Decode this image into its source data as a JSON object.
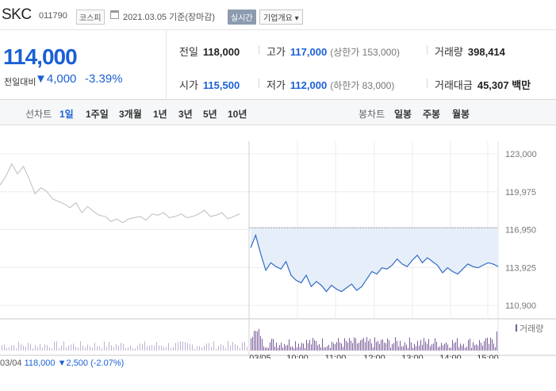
{
  "header": {
    "stock_name": "SKC",
    "stock_code": "011790",
    "market": "코스피",
    "date_text": "2021.03.05 기준(장마감)",
    "realtime_button": "실시간",
    "company_info_button": "기업개요 ▾"
  },
  "summary": {
    "price": "114,000",
    "change_label": "전일대비",
    "change_value": "▼4,000",
    "change_percent": "-3.39%",
    "fields": {
      "prev_close": {
        "label": "전일",
        "value": "118,000"
      },
      "open": {
        "label": "시가",
        "value": "115,500"
      },
      "high": {
        "label": "고가",
        "value": "117,000",
        "sub": "(상한가 153,000)"
      },
      "low": {
        "label": "저가",
        "value": "112,000",
        "sub": "(하한가 83,000)"
      },
      "volume": {
        "label": "거래량",
        "value": "398,414"
      },
      "amount": {
        "label": "거래대금",
        "value": "45,307 백만"
      }
    }
  },
  "tabs": {
    "line_label": "선차트",
    "line_items": [
      "1일",
      "1주일",
      "3개월",
      "1년",
      "3년",
      "5년",
      "10년"
    ],
    "active": "1일",
    "candle_label": "봉차트",
    "candle_items": [
      "일봉",
      "주봉",
      "월봉"
    ]
  },
  "footer": {
    "prev_date": "03/04",
    "prev_price": "118,000",
    "prev_change": "▼2,500",
    "prev_pct": "(-2.07%)"
  },
  "colors": {
    "blue": "#1b60d6",
    "line_today": "#2f6bc4",
    "fill_today": "#e6eef9",
    "line_prev": "#bdbdbd",
    "vol_bar": "#7a5c99"
  },
  "chart_data": {
    "type": "line",
    "yaxis_ticks": [
      "123,000",
      "119,975",
      "116,950",
      "113,925",
      "110,900"
    ],
    "ylim": [
      110900,
      123000
    ],
    "xaxis_ticks": [
      "03/05",
      "10:00",
      "11:00",
      "12:00",
      "13:00",
      "14:00",
      "15:00"
    ],
    "volume_legend": "거래량",
    "reference_price": 118000,
    "series": [
      {
        "values": [
          120500,
          121200,
          122200,
          121400,
          122000,
          121000,
          119800,
          120300,
          120000,
          119400,
          119200,
          119000,
          118700,
          119100,
          118300,
          118800,
          118400,
          118100,
          118000,
          117600,
          117800,
          117500,
          117800,
          117900,
          118000,
          117700,
          118200,
          118100,
          118300,
          117900,
          118000,
          118200,
          117900,
          118000,
          118200,
          118500,
          118000,
          118100,
          118300,
          117800,
          118000,
          118200
        ]
      },
      {
        "values": [
          115500,
          116500,
          115000,
          113700,
          114300,
          114000,
          113800,
          114400,
          113300,
          112900,
          112700,
          113300,
          112400,
          112800,
          112500,
          112000,
          112500,
          112200,
          112000,
          112300,
          112600,
          112100,
          112400,
          113000,
          113600,
          113400,
          113900,
          113800,
          114100,
          114600,
          114200,
          114000,
          114500,
          114900,
          114300,
          114700,
          114400,
          114100,
          113500,
          113900,
          113600,
          113400,
          113800,
          114200,
          114000,
          113900,
          114100,
          114300,
          114200,
          114000
        ]
      }
    ]
  }
}
